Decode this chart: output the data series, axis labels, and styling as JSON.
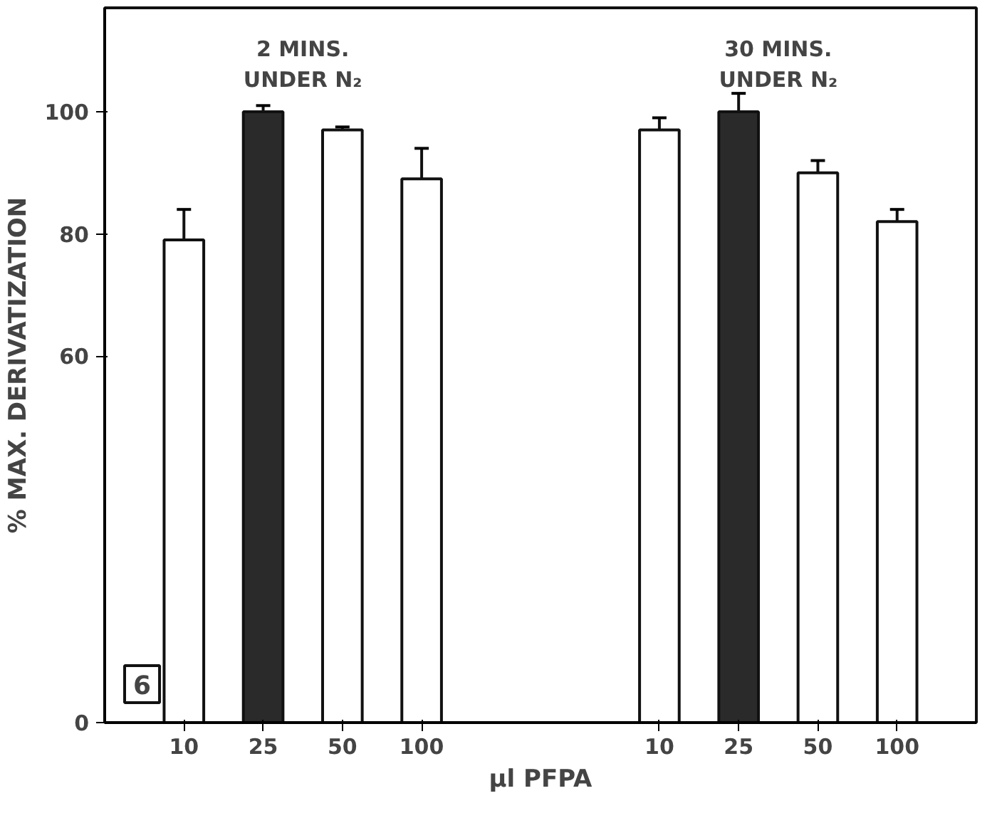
{
  "chart_data": {
    "type": "bar",
    "xlabel": "µl PFPA",
    "ylabel": "% MAX. DERIVATIZATION",
    "categories": [
      "10",
      "25",
      "50",
      "100",
      null,
      null,
      "10",
      "25",
      "50",
      "100"
    ],
    "values": [
      79,
      100,
      97,
      89,
      null,
      null,
      97,
      100,
      90,
      82
    ],
    "errors": [
      5,
      1,
      0.5,
      5,
      null,
      null,
      2,
      3,
      2,
      2
    ],
    "colors": [
      "#ffffff",
      "#2a2a2a",
      "#ffffff",
      "#ffffff",
      "#ffffff",
      "#ffffff",
      "#ffffff",
      "#2a2a2a",
      "#ffffff",
      "#ffffff"
    ],
    "ylim": [
      0,
      117
    ],
    "yticks": [
      0,
      60,
      80,
      100
    ],
    "grid": false,
    "annotations": [
      "2 MINS.\nUNDER N₂",
      "30 MINS.\nUNDER N₂",
      "6"
    ]
  }
}
